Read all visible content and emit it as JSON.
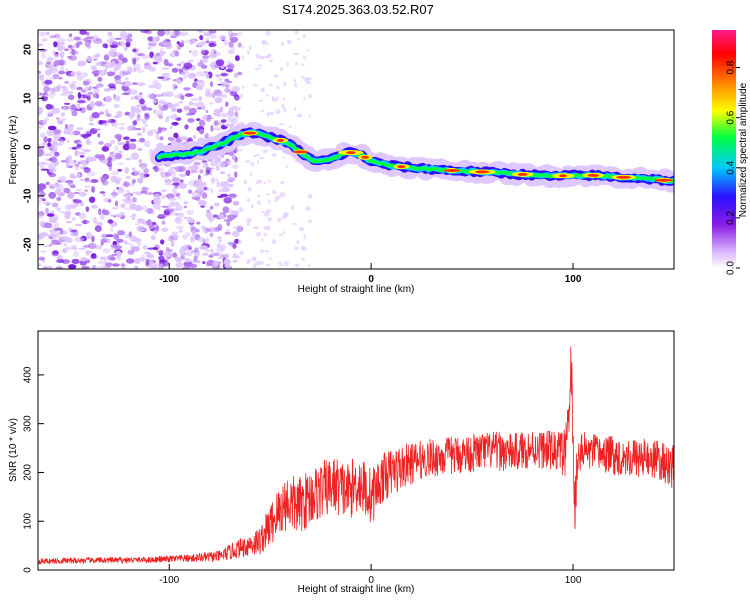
{
  "title": "S174.2025.363.03.52.R07",
  "chart_data": [
    {
      "type": "heatmap",
      "title": "S174.2025.363.03.52.R07",
      "xlabel": "Height of straight line (km)",
      "ylabel": "Frequency (Hz)",
      "xlim": [
        -165,
        150
      ],
      "ylim": [
        -25,
        24
      ],
      "xticks": [
        -100,
        0,
        100
      ],
      "xtick_labels": [
        "-100",
        "0",
        "100"
      ],
      "yticks": [
        -20,
        -10,
        0,
        10,
        20
      ],
      "ytick_labels": [
        "-20",
        "-10",
        "0",
        "10",
        "20"
      ],
      "colorbar": {
        "label": "Normalized spectral amplitude",
        "range": [
          0.0,
          0.95
        ],
        "ticks": [
          0.0,
          0.2,
          0.4,
          0.6,
          0.8
        ],
        "tick_labels": [
          "0.0",
          "0.2",
          "0.4",
          "0.6",
          "0.8"
        ],
        "colors": [
          "#ffffff",
          "#d9b3ff",
          "#8a1ee6",
          "#2a10ff",
          "#00c8ff",
          "#00ff40",
          "#ffff00",
          "#ff8000",
          "#ff0000",
          "#ff1b8d"
        ]
      },
      "ridge": {
        "x": [
          -105,
          -95,
          -85,
          -75,
          -65,
          -58,
          -50,
          -42,
          -35,
          -28,
          -20,
          -12,
          -5,
          0,
          10,
          20,
          30,
          40,
          50,
          60,
          70,
          80,
          90,
          100,
          110,
          120,
          130,
          140,
          150
        ],
        "y": [
          -2,
          -1.5,
          -1,
          0.5,
          2.5,
          3,
          2,
          1,
          -1,
          -3,
          -2.5,
          -1,
          -1.5,
          -3,
          -3.8,
          -4.2,
          -4.5,
          -4.8,
          -5,
          -5.2,
          -5.5,
          -5.7,
          -6,
          -5.8,
          -5.8,
          -6.1,
          -6.3,
          -6.6,
          -7
        ]
      }
    },
    {
      "type": "line",
      "xlabel": "Height of straight line (km)",
      "ylabel": "SNR (10 * v/v)",
      "xlim": [
        -165,
        150
      ],
      "ylim": [
        0,
        490
      ],
      "xticks": [
        -100,
        0,
        100
      ],
      "xtick_labels": [
        "-100",
        "0",
        "100"
      ],
      "yticks": [
        0,
        100,
        200,
        300,
        400
      ],
      "ytick_labels": [
        "0",
        "100",
        "200",
        "300",
        "400"
      ],
      "series": [
        {
          "name": "SNR",
          "color": "#ee2222",
          "x": [
            -165,
            -150,
            -130,
            -110,
            -90,
            -75,
            -65,
            -55,
            -48,
            -42,
            -36,
            -30,
            -24,
            -18,
            -12,
            -6,
            0,
            6,
            12,
            18,
            24,
            30,
            40,
            50,
            60,
            70,
            80,
            90,
            96,
            98,
            99,
            100,
            101,
            102,
            104,
            110,
            120,
            130,
            140,
            150
          ],
          "y": [
            18,
            19,
            20,
            21,
            24,
            28,
            45,
            60,
            105,
            140,
            130,
            150,
            165,
            175,
            160,
            180,
            150,
            190,
            205,
            215,
            225,
            230,
            235,
            240,
            245,
            240,
            250,
            245,
            240,
            300,
            440,
            260,
            110,
            230,
            245,
            240,
            235,
            230,
            228,
            210
          ],
          "noise_amplitude": [
            6,
            6,
            6,
            6,
            8,
            12,
            20,
            30,
            50,
            60,
            60,
            60,
            60,
            60,
            60,
            60,
            60,
            50,
            50,
            45,
            40,
            40,
            40,
            40,
            40,
            40,
            40,
            40,
            50,
            60,
            60,
            80,
            60,
            50,
            40,
            40,
            40,
            40,
            40,
            45
          ]
        }
      ]
    }
  ]
}
